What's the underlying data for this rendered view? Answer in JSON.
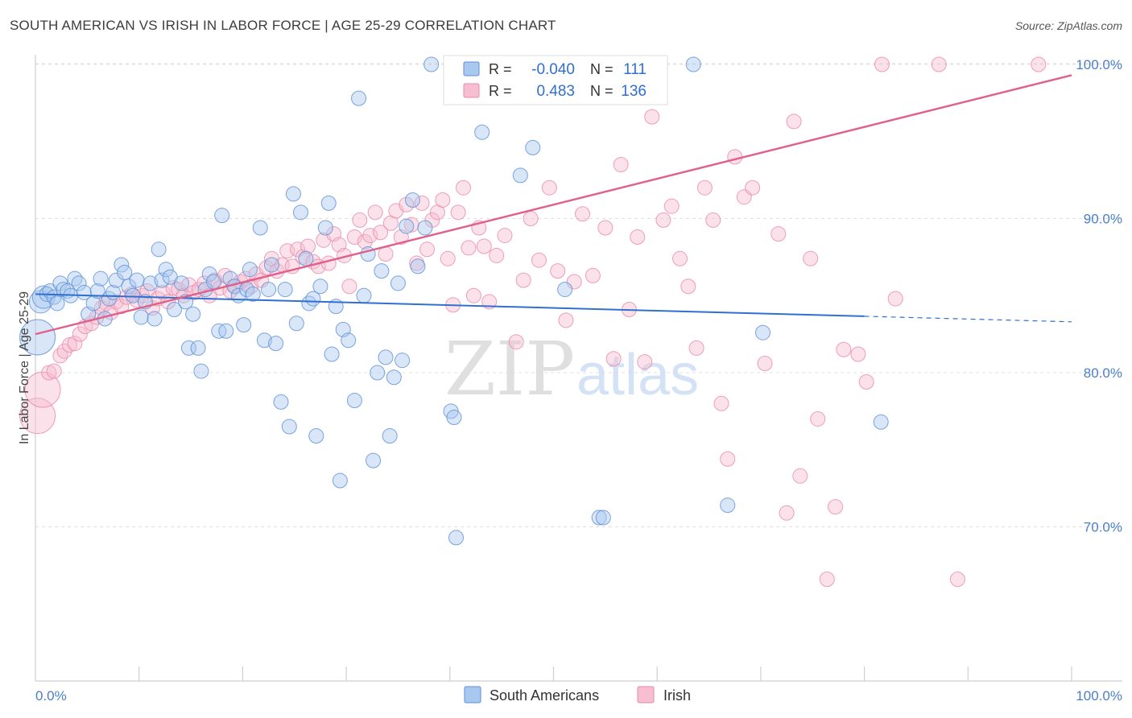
{
  "title": "SOUTH AMERICAN VS IRISH IN LABOR FORCE | AGE 25-29 CORRELATION CHART",
  "source": "Source: ZipAtlas.com",
  "watermark": {
    "zip": "ZIP",
    "atlas": "atlas"
  },
  "colors": {
    "south_fill": "#a8c8f0",
    "south_stroke": "#5b8fd6",
    "south_line": "#2f6fd0",
    "irish_fill": "#f7bdd0",
    "irish_stroke": "#e889a8",
    "irish_line": "#e0608a",
    "tick_text": "#4a7fc8",
    "grid": "#e0e0e0"
  },
  "stats_legend": {
    "r_label": "R =",
    "n_label": "N =",
    "rows": [
      {
        "r": "-0.040",
        "n": "111"
      },
      {
        "r": "0.483",
        "n": "136"
      }
    ]
  },
  "chart_data": {
    "type": "scatter",
    "title": "SOUTH AMERICAN VS IRISH IN LABOR FORCE | AGE 25-29 CORRELATION CHART",
    "xlabel": "",
    "ylabel": "In Labor Force | Age 25-29",
    "xlim": [
      0,
      100
    ],
    "ylim": [
      62,
      102
    ],
    "x_tick_labels": [
      "0.0%",
      "100.0%"
    ],
    "y_ticks": [
      70,
      80,
      90,
      100
    ],
    "y_tick_labels": [
      "70.0%",
      "80.0%",
      "90.0%",
      "100.0%"
    ],
    "grid": true,
    "legend_position": "bottom",
    "series": [
      {
        "name": "South Americans",
        "r": -0.04,
        "n": 111,
        "trend": {
          "x0": 0,
          "y0": 85.1,
          "x1": 100,
          "y1": 83.3,
          "solid_until_x": 80
        },
        "points": [
          [
            0.2,
            82.3
          ],
          [
            0.5,
            84.6
          ],
          [
            0.8,
            84.9
          ],
          [
            1.1,
            85.1
          ],
          [
            1.4,
            85.3
          ],
          [
            1.8,
            84.9
          ],
          [
            2.1,
            84.5
          ],
          [
            2.4,
            85.8
          ],
          [
            2.7,
            85.4
          ],
          [
            3.1,
            85.3
          ],
          [
            3.4,
            85.0
          ],
          [
            3.8,
            86.1
          ],
          [
            4.2,
            85.8
          ],
          [
            4.7,
            85.2
          ],
          [
            5.1,
            83.8
          ],
          [
            5.6,
            84.5
          ],
          [
            6.0,
            85.3
          ],
          [
            6.3,
            86.1
          ],
          [
            6.7,
            83.5
          ],
          [
            7.1,
            84.8
          ],
          [
            7.5,
            85.2
          ],
          [
            7.8,
            86.0
          ],
          [
            8.3,
            87.0
          ],
          [
            8.6,
            86.5
          ],
          [
            9.0,
            85.6
          ],
          [
            9.4,
            85.0
          ],
          [
            9.8,
            86.0
          ],
          [
            10.2,
            83.6
          ],
          [
            10.6,
            84.6
          ],
          [
            11.1,
            85.8
          ],
          [
            11.5,
            83.5
          ],
          [
            11.9,
            88.0
          ],
          [
            12.2,
            86.0
          ],
          [
            12.6,
            86.7
          ],
          [
            13.0,
            86.2
          ],
          [
            13.4,
            84.1
          ],
          [
            14.1,
            85.8
          ],
          [
            14.5,
            84.6
          ],
          [
            14.8,
            81.6
          ],
          [
            15.2,
            83.8
          ],
          [
            15.7,
            81.6
          ],
          [
            16.0,
            80.1
          ],
          [
            16.4,
            85.4
          ],
          [
            16.8,
            86.4
          ],
          [
            17.2,
            85.9
          ],
          [
            17.7,
            82.7
          ],
          [
            18.0,
            90.2
          ],
          [
            18.4,
            82.7
          ],
          [
            18.8,
            86.1
          ],
          [
            19.2,
            85.6
          ],
          [
            19.6,
            85.0
          ],
          [
            20.1,
            83.1
          ],
          [
            20.4,
            85.4
          ],
          [
            20.7,
            86.7
          ],
          [
            21.0,
            85.1
          ],
          [
            21.7,
            89.4
          ],
          [
            22.1,
            82.1
          ],
          [
            22.5,
            85.4
          ],
          [
            22.8,
            87.0
          ],
          [
            23.2,
            81.9
          ],
          [
            23.7,
            78.1
          ],
          [
            24.1,
            85.4
          ],
          [
            24.5,
            76.5
          ],
          [
            24.9,
            91.6
          ],
          [
            25.2,
            83.2
          ],
          [
            25.6,
            90.4
          ],
          [
            26.1,
            87.4
          ],
          [
            26.4,
            84.5
          ],
          [
            26.8,
            84.8
          ],
          [
            27.1,
            75.9
          ],
          [
            27.5,
            85.6
          ],
          [
            28.0,
            89.4
          ],
          [
            28.3,
            91.0
          ],
          [
            28.6,
            81.2
          ],
          [
            29.0,
            84.3
          ],
          [
            29.4,
            73.0
          ],
          [
            29.7,
            82.8
          ],
          [
            30.2,
            82.1
          ],
          [
            30.8,
            78.2
          ],
          [
            31.2,
            97.8
          ],
          [
            31.7,
            85.0
          ],
          [
            32.1,
            87.7
          ],
          [
            32.6,
            74.3
          ],
          [
            33.0,
            80.0
          ],
          [
            33.4,
            86.6
          ],
          [
            33.8,
            81.0
          ],
          [
            34.2,
            75.9
          ],
          [
            34.6,
            79.7
          ],
          [
            35.0,
            85.8
          ],
          [
            35.4,
            80.8
          ],
          [
            35.8,
            89.5
          ],
          [
            36.4,
            91.2
          ],
          [
            36.9,
            86.9
          ],
          [
            37.6,
            89.4
          ],
          [
            38.2,
            100.0
          ],
          [
            40.1,
            77.5
          ],
          [
            40.4,
            77.1
          ],
          [
            40.6,
            69.3
          ],
          [
            43.1,
            95.6
          ],
          [
            44.5,
            100.0
          ],
          [
            46.8,
            92.8
          ],
          [
            48.0,
            94.6
          ],
          [
            51.1,
            85.4
          ],
          [
            54.4,
            70.6
          ],
          [
            54.8,
            70.6
          ],
          [
            56.8,
            100.0
          ],
          [
            58.4,
            98.1
          ],
          [
            66.8,
            71.4
          ],
          [
            70.2,
            82.6
          ],
          [
            81.6,
            76.8
          ],
          [
            63.5,
            100.0
          ]
        ]
      },
      {
        "name": "Irish",
        "r": 0.483,
        "n": 136,
        "trend": {
          "x0": 0,
          "y0": 82.5,
          "x1": 100,
          "y1": 99.3
        },
        "points": [
          [
            0.2,
            77.2
          ],
          [
            0.7,
            78.9
          ],
          [
            1.3,
            80.0
          ],
          [
            1.8,
            80.1
          ],
          [
            2.4,
            81.1
          ],
          [
            2.8,
            81.4
          ],
          [
            3.3,
            81.8
          ],
          [
            3.8,
            81.9
          ],
          [
            4.3,
            82.5
          ],
          [
            4.8,
            83.0
          ],
          [
            5.4,
            83.2
          ],
          [
            5.9,
            83.6
          ],
          [
            6.4,
            84.2
          ],
          [
            6.8,
            84.5
          ],
          [
            7.3,
            83.9
          ],
          [
            7.8,
            84.6
          ],
          [
            8.3,
            84.3
          ],
          [
            8.8,
            84.9
          ],
          [
            9.3,
            85.1
          ],
          [
            9.8,
            84.7
          ],
          [
            10.3,
            85.0
          ],
          [
            10.8,
            85.3
          ],
          [
            11.3,
            84.2
          ],
          [
            11.8,
            84.8
          ],
          [
            12.3,
            85.2
          ],
          [
            12.8,
            84.6
          ],
          [
            13.3,
            85.5
          ],
          [
            13.8,
            85.4
          ],
          [
            14.3,
            85.0
          ],
          [
            14.8,
            85.7
          ],
          [
            15.3,
            85.2
          ],
          [
            15.8,
            85.4
          ],
          [
            16.3,
            85.8
          ],
          [
            16.8,
            85.0
          ],
          [
            17.3,
            86.0
          ],
          [
            17.8,
            85.5
          ],
          [
            18.3,
            86.3
          ],
          [
            18.8,
            85.3
          ],
          [
            19.3,
            85.6
          ],
          [
            19.8,
            85.9
          ],
          [
            20.3,
            86.1
          ],
          [
            20.8,
            85.6
          ],
          [
            21.3,
            86.4
          ],
          [
            21.8,
            86.0
          ],
          [
            22.3,
            86.8
          ],
          [
            22.8,
            87.4
          ],
          [
            23.3,
            86.6
          ],
          [
            23.8,
            87.0
          ],
          [
            24.3,
            87.9
          ],
          [
            24.8,
            86.9
          ],
          [
            25.3,
            88.0
          ],
          [
            25.8,
            87.5
          ],
          [
            26.3,
            88.2
          ],
          [
            26.8,
            87.2
          ],
          [
            27.3,
            86.9
          ],
          [
            27.8,
            88.6
          ],
          [
            28.3,
            87.1
          ],
          [
            28.8,
            89.0
          ],
          [
            29.3,
            88.3
          ],
          [
            29.8,
            87.6
          ],
          [
            30.3,
            85.6
          ],
          [
            30.8,
            88.8
          ],
          [
            31.3,
            89.9
          ],
          [
            31.8,
            88.5
          ],
          [
            32.3,
            88.9
          ],
          [
            32.8,
            90.4
          ],
          [
            33.3,
            89.1
          ],
          [
            33.8,
            87.7
          ],
          [
            34.3,
            89.7
          ],
          [
            34.8,
            90.5
          ],
          [
            35.3,
            88.8
          ],
          [
            35.8,
            90.9
          ],
          [
            36.3,
            89.6
          ],
          [
            36.8,
            87.1
          ],
          [
            37.3,
            91.0
          ],
          [
            37.8,
            88.0
          ],
          [
            38.3,
            89.9
          ],
          [
            38.8,
            90.4
          ],
          [
            39.3,
            91.2
          ],
          [
            39.8,
            87.4
          ],
          [
            40.3,
            84.4
          ],
          [
            40.8,
            90.4
          ],
          [
            41.3,
            92.0
          ],
          [
            41.8,
            88.1
          ],
          [
            42.3,
            85.0
          ],
          [
            42.8,
            89.4
          ],
          [
            43.3,
            88.2
          ],
          [
            43.8,
            84.6
          ],
          [
            44.5,
            87.6
          ],
          [
            45.3,
            88.9
          ],
          [
            46.4,
            82.0
          ],
          [
            47.1,
            86.0
          ],
          [
            47.8,
            90.0
          ],
          [
            48.6,
            87.3
          ],
          [
            49.6,
            92.0
          ],
          [
            50.4,
            86.6
          ],
          [
            51.2,
            83.4
          ],
          [
            52.0,
            85.9
          ],
          [
            52.8,
            90.3
          ],
          [
            53.8,
            86.3
          ],
          [
            55.0,
            89.4
          ],
          [
            55.8,
            80.9
          ],
          [
            56.5,
            93.5
          ],
          [
            57.3,
            84.1
          ],
          [
            58.1,
            88.8
          ],
          [
            58.8,
            80.7
          ],
          [
            59.5,
            96.6
          ],
          [
            60.6,
            89.9
          ],
          [
            61.4,
            90.8
          ],
          [
            62.2,
            87.4
          ],
          [
            63.0,
            85.6
          ],
          [
            63.8,
            81.6
          ],
          [
            64.6,
            92.0
          ],
          [
            65.4,
            89.9
          ],
          [
            66.2,
            78.0
          ],
          [
            66.8,
            74.4
          ],
          [
            67.5,
            94.0
          ],
          [
            68.4,
            91.4
          ],
          [
            69.2,
            92.0
          ],
          [
            70.4,
            80.6
          ],
          [
            71.7,
            89.0
          ],
          [
            72.5,
            70.9
          ],
          [
            73.2,
            96.3
          ],
          [
            73.8,
            73.3
          ],
          [
            74.8,
            87.4
          ],
          [
            75.5,
            77.0
          ],
          [
            76.4,
            66.6
          ],
          [
            77.2,
            71.3
          ],
          [
            78.0,
            81.5
          ],
          [
            79.4,
            81.2
          ],
          [
            80.2,
            79.4
          ],
          [
            81.7,
            100.0
          ],
          [
            83.0,
            84.8
          ],
          [
            87.2,
            100.0
          ],
          [
            89.0,
            66.6
          ],
          [
            96.8,
            100.0
          ]
        ]
      }
    ]
  },
  "bottom_legend": [
    {
      "label": "South Americans"
    },
    {
      "label": "Irish"
    }
  ]
}
